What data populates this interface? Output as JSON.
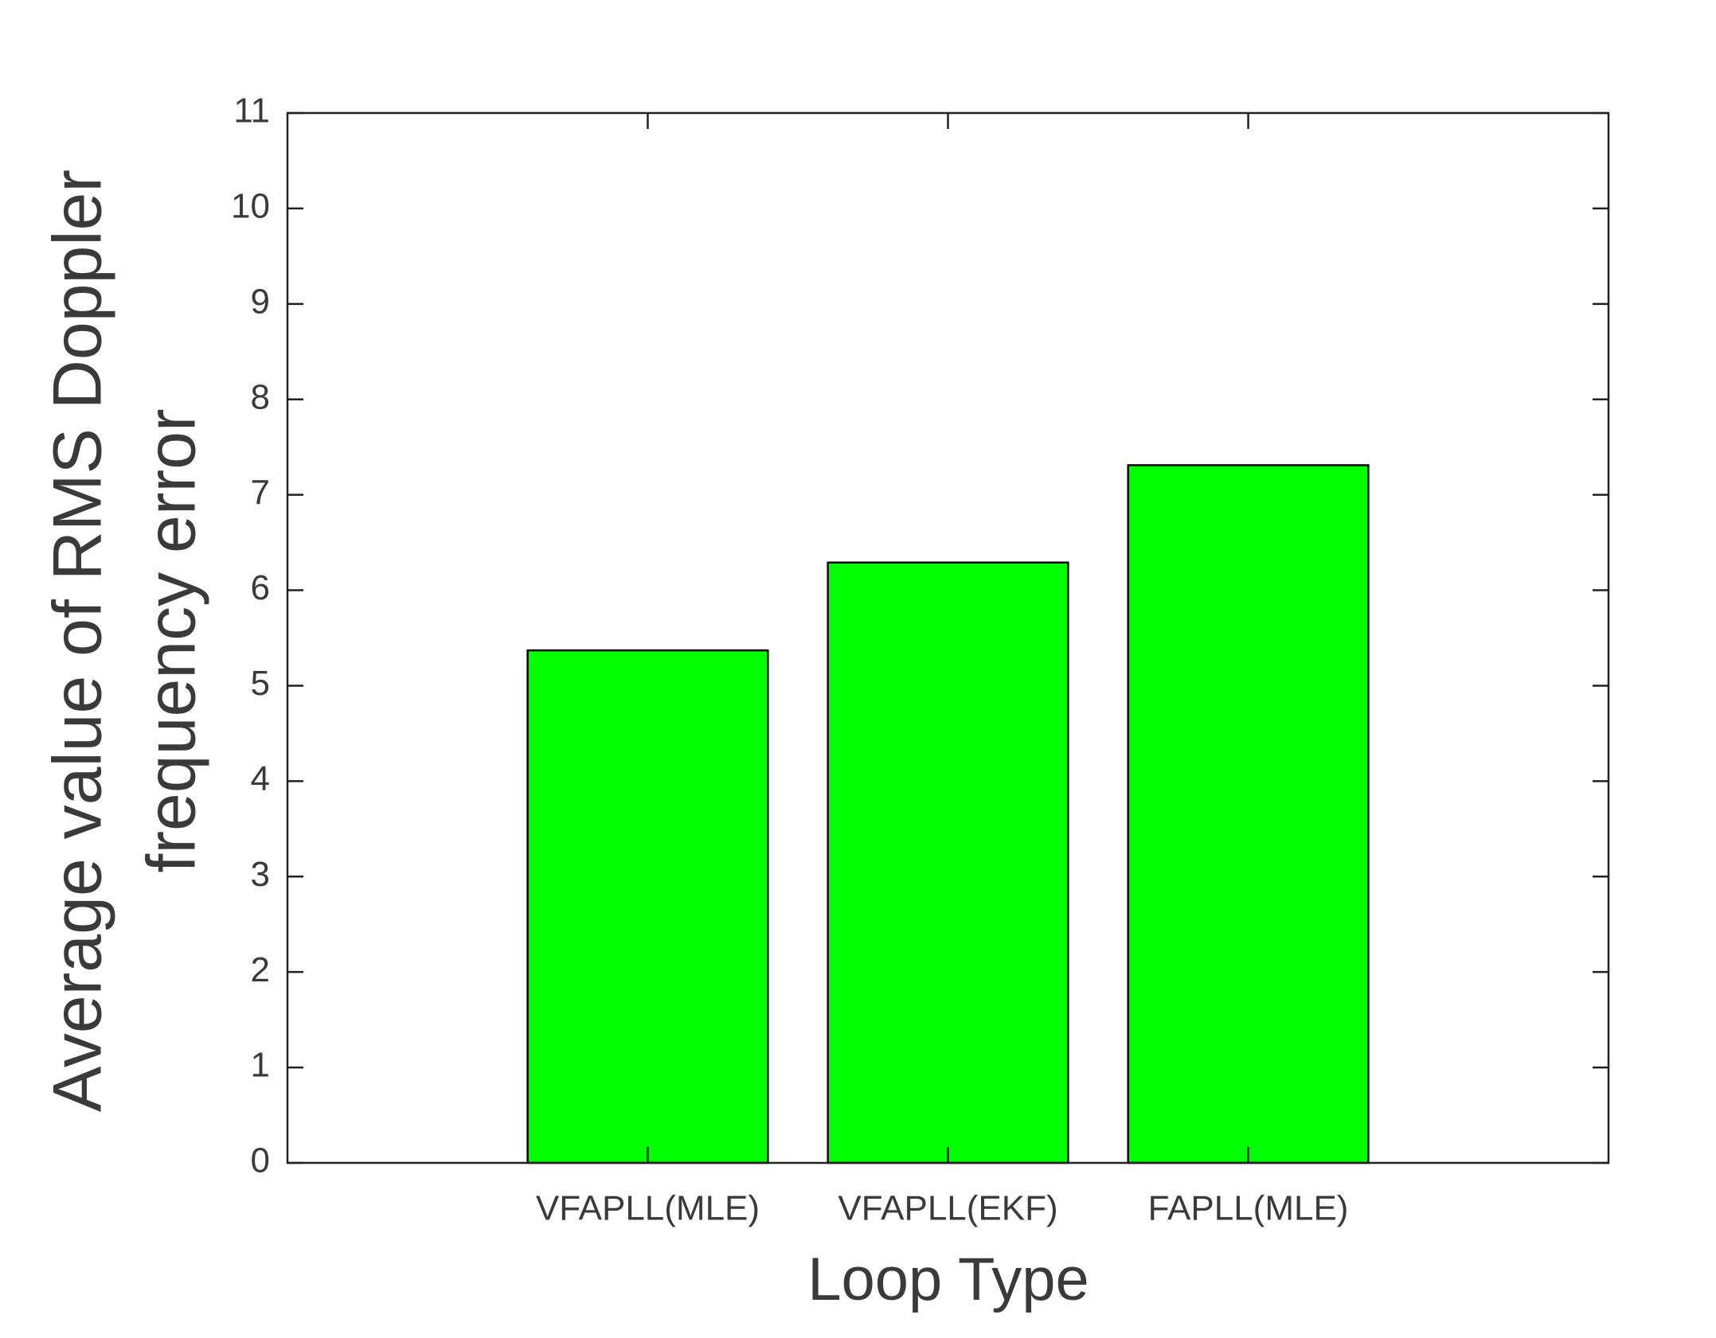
{
  "chart_data": {
    "type": "bar",
    "x_label": "Loop Type",
    "y_label": [
      "Average value of RMS Doppler",
      "frequency error"
    ],
    "categories": [
      "VFAPLL(MLE)",
      "VFAPLL(EKF)",
      "FAPLL(MLE)"
    ],
    "values": [
      5.37,
      6.29,
      7.31
    ],
    "color": "#00ff00",
    "ylim": [
      0,
      11
    ],
    "yticks": [
      0,
      1,
      2,
      3,
      4,
      5,
      6,
      7,
      8,
      9,
      10,
      11
    ],
    "grid": false
  }
}
